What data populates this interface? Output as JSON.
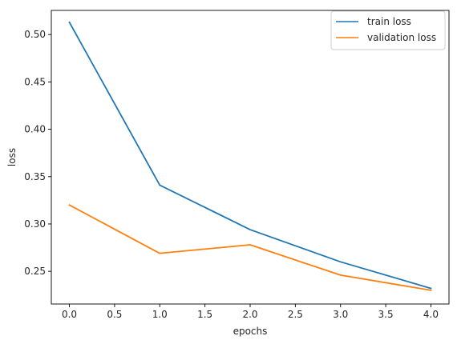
{
  "chart_data": {
    "type": "line",
    "title": "",
    "xlabel": "epochs",
    "ylabel": "loss",
    "x": [
      0,
      1,
      2,
      3,
      4
    ],
    "xlim": [
      -0.2,
      4.2
    ],
    "ylim": [
      0.2155,
      0.5255
    ],
    "xticks": [
      0.0,
      0.5,
      1.0,
      1.5,
      2.0,
      2.5,
      3.0,
      3.5,
      4.0
    ],
    "xtick_labels": [
      "0.0",
      "0.5",
      "1.0",
      "1.5",
      "2.0",
      "2.5",
      "3.0",
      "3.5",
      "4.0"
    ],
    "yticks": [
      0.25,
      0.3,
      0.35,
      0.4,
      0.45,
      0.5
    ],
    "ytick_labels": [
      "0.25",
      "0.30",
      "0.35",
      "0.40",
      "0.45",
      "0.50"
    ],
    "grid": false,
    "legend_position": "top-right",
    "series": [
      {
        "name": "train loss",
        "color": "#1f77b4",
        "values": [
          0.513,
          0.341,
          0.294,
          0.26,
          0.232
        ]
      },
      {
        "name": "validation loss",
        "color": "#ff7f0e",
        "values": [
          0.32,
          0.269,
          0.278,
          0.246,
          0.23
        ]
      }
    ]
  }
}
